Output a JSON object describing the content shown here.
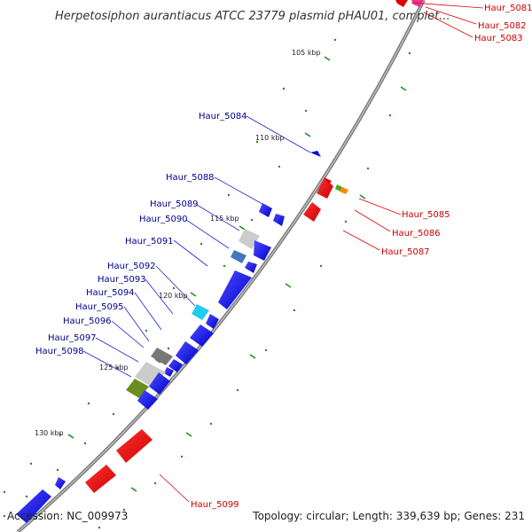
{
  "title": "Herpetosiphon aurantiacus ATCC 23779 plasmid pHAU01, complet...",
  "footer": {
    "accession": "Accession: NC_009973",
    "summary": "Topology: circular; Length: 339,639 bp; Genes: 231"
  },
  "colors": {
    "forward_label": "#00008b",
    "reverse_label": "#cc0000",
    "backbone": "#888888",
    "tick_dots": "#228b22"
  },
  "ticks": [
    "105 kbp",
    "110 kbp",
    "115 kbp",
    "120 kbp",
    "125 kbp",
    "130 kbp"
  ],
  "forward_labels": [
    "Haur_5084",
    "Haur_5088",
    "Haur_5089",
    "Haur_5090",
    "Haur_5091",
    "Haur_5092",
    "Haur_5093",
    "Haur_5094",
    "Haur_5095",
    "Haur_5096",
    "Haur_5097",
    "Haur_5098"
  ],
  "reverse_labels": [
    "Haur_5081",
    "Haur_5082",
    "Haur_5083",
    "Haur_5085",
    "Haur_5086",
    "Haur_5087",
    "Haur_5099"
  ]
}
